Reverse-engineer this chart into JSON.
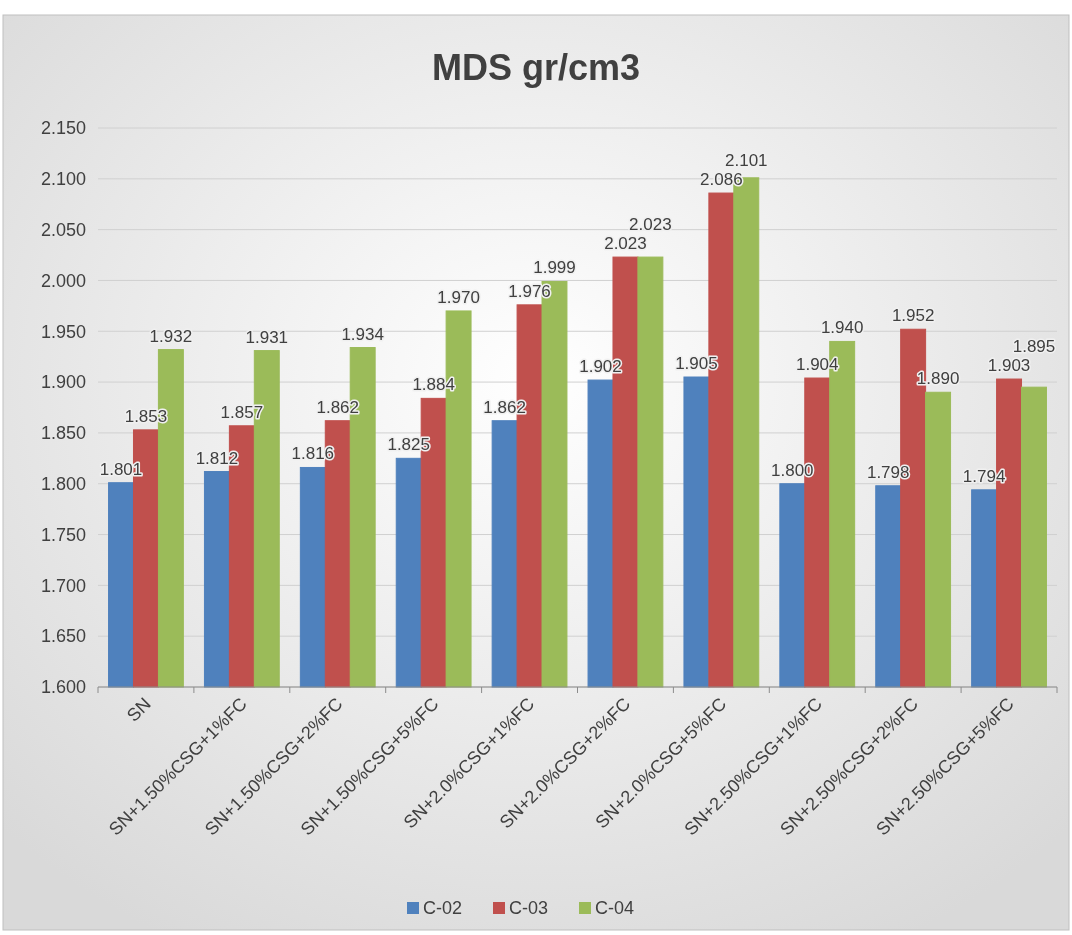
{
  "chart_data": {
    "type": "bar",
    "title": "MDS gr/cm3",
    "categories": [
      "SN",
      "SN+1.50%CSG+1%FC",
      "SN+1.50%CSG+2%FC",
      "SN+1.50%CSG+5%FC",
      "SN+2.0%CSG+1%FC",
      "SN+2.0%CSG+2%FC",
      "SN+2.0%CSG+5%FC",
      "SN+2.50%CSG+1%FC",
      "SN+2.50%CSG+2%FC",
      "SN+2.50%CSG+5%FC"
    ],
    "series": [
      {
        "name": "C-02",
        "color": "#4f81bd",
        "values": [
          1.801,
          1.812,
          1.816,
          1.825,
          1.862,
          1.902,
          1.905,
          1.8,
          1.798,
          1.794
        ],
        "value_labels": [
          "1.801",
          "1.812",
          "1.816",
          "1.825",
          "1.862",
          "1.902",
          "1.905",
          "1.800",
          "1.798",
          "1.794"
        ]
      },
      {
        "name": "C-03",
        "color": "#c0504d",
        "values": [
          1.853,
          1.857,
          1.862,
          1.884,
          1.976,
          2.023,
          2.086,
          1.904,
          1.952,
          1.903
        ],
        "value_labels": [
          "1.853",
          "1.857",
          "1.862",
          "1.884",
          "1.976",
          "2.023",
          "2.086",
          "1.904",
          "1.952",
          "1.903"
        ]
      },
      {
        "name": "C-04",
        "color": "#9bbb59",
        "values": [
          1.932,
          1.931,
          1.934,
          1.97,
          1.999,
          2.023,
          2.101,
          1.94,
          1.89,
          1.895
        ],
        "value_labels": [
          "1.932",
          "1.931",
          "1.934",
          "1.970",
          "1.999",
          "2.023",
          "2.101",
          "1.940",
          "1.890",
          "1.895"
        ]
      }
    ],
    "ylim": [
      1.6,
      2.15
    ],
    "yticks": [
      {
        "value": 1.6,
        "label": "1.600"
      },
      {
        "value": 1.65,
        "label": "1.650"
      },
      {
        "value": 1.7,
        "label": "1.700"
      },
      {
        "value": 1.75,
        "label": "1.750"
      },
      {
        "value": 1.8,
        "label": "1.800"
      },
      {
        "value": 1.85,
        "label": "1.850"
      },
      {
        "value": 1.9,
        "label": "1.900"
      },
      {
        "value": 1.95,
        "label": "1.950"
      },
      {
        "value": 2.0,
        "label": "2.000"
      },
      {
        "value": 2.05,
        "label": "2.050"
      },
      {
        "value": 2.1,
        "label": "2.100"
      },
      {
        "value": 2.15,
        "label": "2.150"
      }
    ],
    "grid": "y",
    "legend": "bottom"
  }
}
